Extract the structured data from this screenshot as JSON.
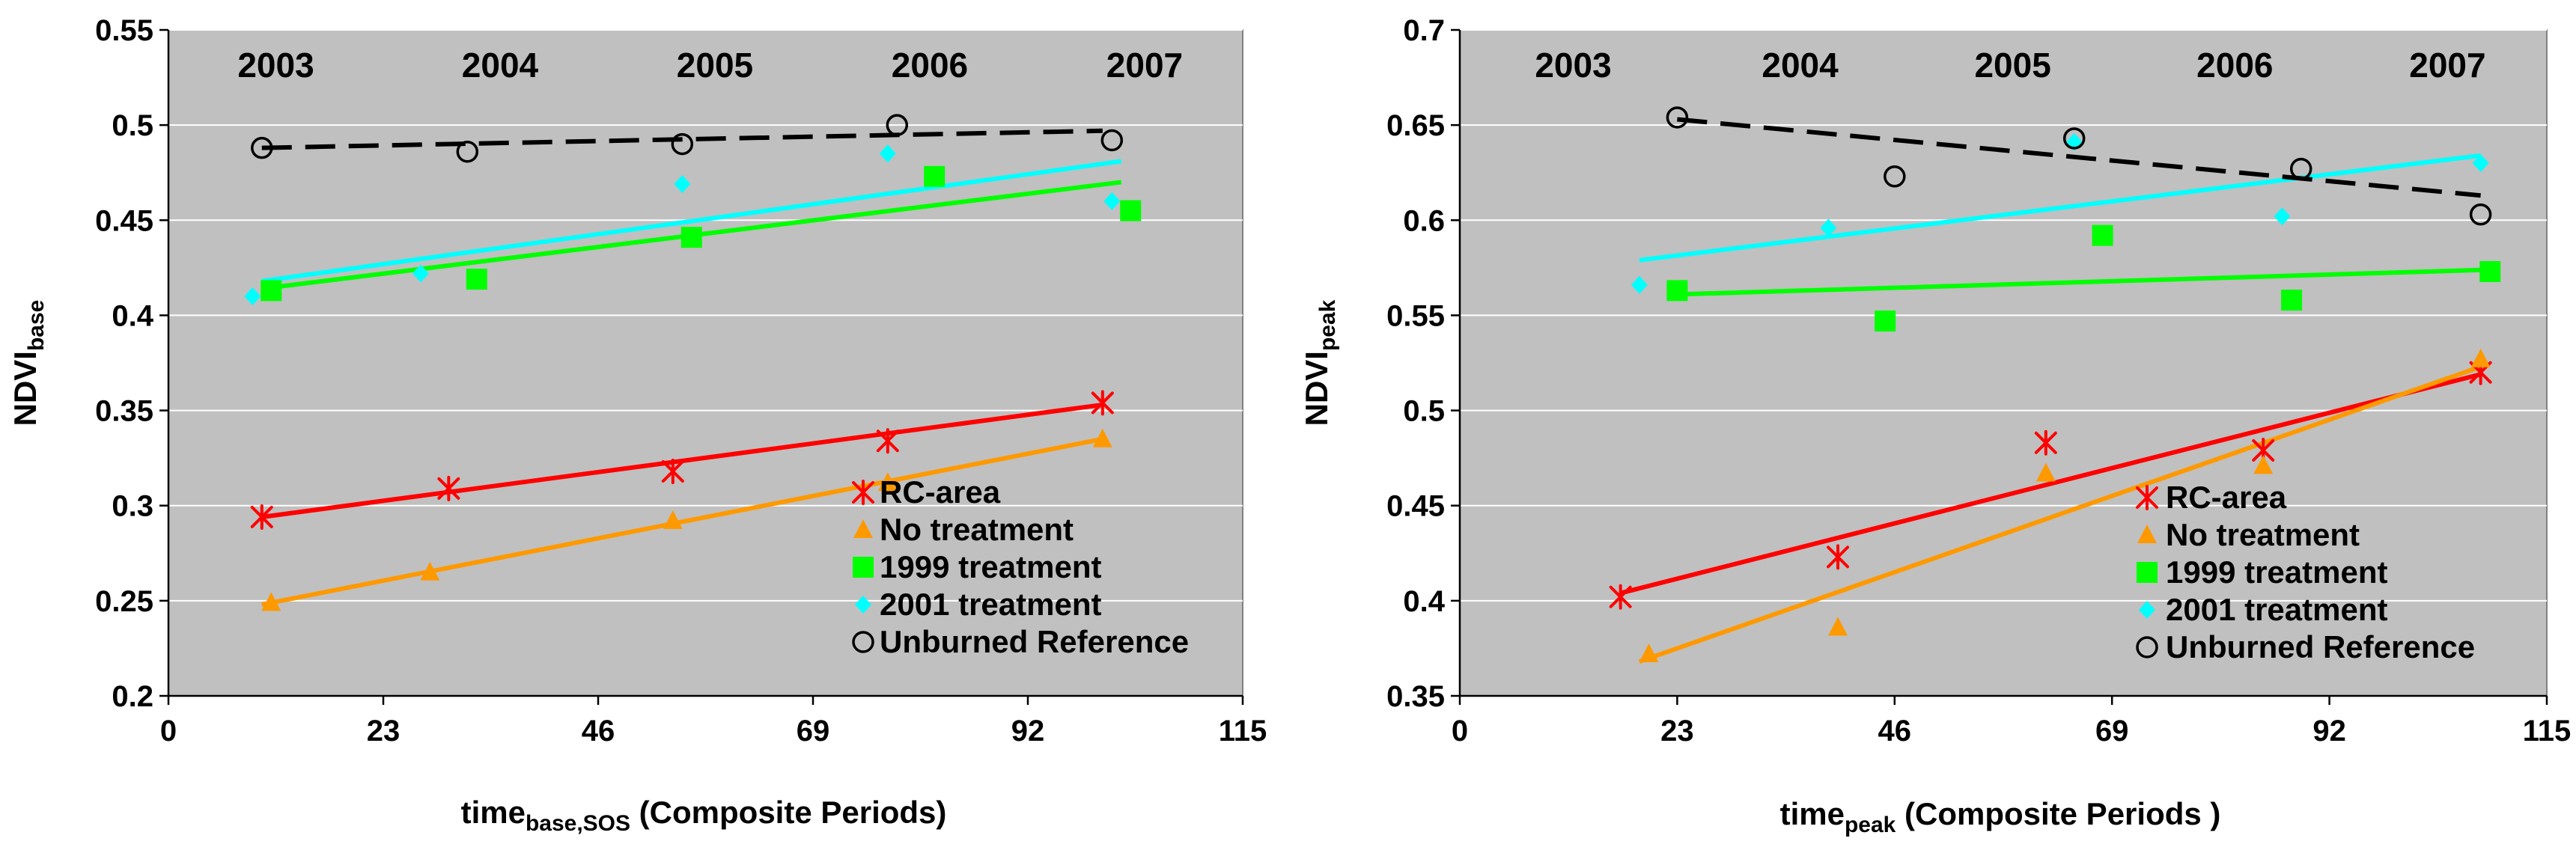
{
  "chart_data": [
    {
      "type": "scatter",
      "id": "base",
      "title": "",
      "xlabel": {
        "main": "time",
        "sub": "base,SOS",
        "rest": " (Composite Periods)"
      },
      "ylabel": {
        "main": "NDVI",
        "sub": "base"
      },
      "xlim": [
        0,
        115
      ],
      "ylim": [
        0.2,
        0.55
      ],
      "xticks": [
        0,
        23,
        46,
        69,
        92,
        115
      ],
      "xtick_labels": [
        "0",
        "23",
        "46",
        "69",
        "92",
        "115"
      ],
      "yticks": [
        0.2,
        0.25,
        0.3,
        0.35,
        0.4,
        0.45,
        0.5,
        0.55
      ],
      "ytick_labels": [
        "0.2",
        "0.25",
        "0.3",
        "0.35",
        "0.4",
        "0.45",
        "0.5",
        "0.55"
      ],
      "grid": "horizontal",
      "legend_position": "bottom-right",
      "year_labels": [
        {
          "text": "2003",
          "x": 11.5
        },
        {
          "text": "2004",
          "x": 35.5
        },
        {
          "text": "2005",
          "x": 58.5
        },
        {
          "text": "2006",
          "x": 81.5
        },
        {
          "text": "2007",
          "x": 104.5
        }
      ],
      "series": [
        {
          "name": "RC-area",
          "marker": "asterisk",
          "color": "#ff0000",
          "x": [
            10,
            30,
            54,
            77,
            100
          ],
          "y": [
            0.294,
            0.309,
            0.318,
            0.334,
            0.354
          ],
          "trend": {
            "x": [
              10,
              100
            ],
            "y": [
              0.294,
              0.353
            ],
            "dash": "solid"
          }
        },
        {
          "name": "No treatment",
          "marker": "triangle",
          "color": "#ff9900",
          "x": [
            11,
            28,
            54,
            77,
            100
          ],
          "y": [
            0.249,
            0.265,
            0.292,
            0.312,
            0.335
          ],
          "trend": {
            "x": [
              10,
              100
            ],
            "y": [
              0.248,
              0.335
            ],
            "dash": "solid"
          }
        },
        {
          "name": "1999 treatment",
          "marker": "square",
          "color": "#00ff00",
          "x": [
            11,
            33,
            56,
            82,
            103
          ],
          "y": [
            0.413,
            0.419,
            0.441,
            0.473,
            0.455
          ],
          "trend": {
            "x": [
              10,
              102
            ],
            "y": [
              0.414,
              0.47
            ],
            "dash": "solid"
          }
        },
        {
          "name": "2001 treatment",
          "marker": "diamond",
          "color": "#00ffff",
          "x": [
            9,
            27,
            55,
            77,
            101
          ],
          "y": [
            0.41,
            0.422,
            0.469,
            0.485,
            0.46
          ],
          "trend": {
            "x": [
              10,
              102
            ],
            "y": [
              0.418,
              0.481
            ],
            "dash": "solid"
          }
        },
        {
          "name": "Unburned Reference",
          "marker": "circle",
          "color": "#000000",
          "x": [
            10,
            32,
            55,
            78,
            101
          ],
          "y": [
            0.488,
            0.486,
            0.49,
            0.5,
            0.492
          ],
          "trend": {
            "x": [
              10,
              100
            ],
            "y": [
              0.488,
              0.497
            ],
            "dash": "dashed"
          }
        }
      ]
    },
    {
      "type": "scatter",
      "id": "peak",
      "title": "",
      "xlabel": {
        "main": "time",
        "sub": "peak",
        "rest": " (Composite Periods )"
      },
      "ylabel": {
        "main": "NDVI",
        "sub": "peak"
      },
      "xlim": [
        0,
        115
      ],
      "ylim": [
        0.35,
        0.7
      ],
      "xticks": [
        0,
        23,
        46,
        69,
        92,
        115
      ],
      "xtick_labels": [
        "0",
        "23",
        "46",
        "69",
        "92",
        "115"
      ],
      "yticks": [
        0.35,
        0.4,
        0.45,
        0.5,
        0.55,
        0.6,
        0.65,
        0.7
      ],
      "ytick_labels": [
        "0.35",
        "0.4",
        "0.45",
        "0.5",
        "0.55",
        "0.6",
        "0.65",
        "0.7"
      ],
      "grid": "horizontal",
      "legend_position": "bottom-right",
      "year_labels": [
        {
          "text": "2003",
          "x": 12
        },
        {
          "text": "2004",
          "x": 36
        },
        {
          "text": "2005",
          "x": 58.5
        },
        {
          "text": "2006",
          "x": 82
        },
        {
          "text": "2007",
          "x": 104.5
        }
      ],
      "series": [
        {
          "name": "RC-area",
          "marker": "asterisk",
          "color": "#ff0000",
          "x": [
            17,
            40,
            62,
            85,
            108
          ],
          "y": [
            0.402,
            0.423,
            0.483,
            0.479,
            0.52
          ],
          "trend": {
            "x": [
              17,
              108
            ],
            "y": [
              0.404,
              0.519
            ],
            "dash": "solid"
          }
        },
        {
          "name": "No treatment",
          "marker": "triangle",
          "color": "#ff9900",
          "x": [
            20,
            40,
            62,
            85,
            108
          ],
          "y": [
            0.372,
            0.386,
            0.467,
            0.471,
            0.527
          ],
          "trend": {
            "x": [
              19,
              108
            ],
            "y": [
              0.368,
              0.523
            ],
            "dash": "solid"
          }
        },
        {
          "name": "1999 treatment",
          "marker": "square",
          "color": "#00ff00",
          "x": [
            23,
            45,
            68,
            88,
            109
          ],
          "y": [
            0.563,
            0.547,
            0.592,
            0.558,
            0.573
          ],
          "trend": {
            "x": [
              23,
              109
            ],
            "y": [
              0.561,
              0.574
            ],
            "dash": "solid"
          }
        },
        {
          "name": "2001 treatment",
          "marker": "diamond",
          "color": "#00ffff",
          "x": [
            19,
            39,
            65,
            87,
            108
          ],
          "y": [
            0.566,
            0.596,
            0.641,
            0.602,
            0.63
          ],
          "trend": {
            "x": [
              19,
              108
            ],
            "y": [
              0.579,
              0.634
            ],
            "dash": "solid"
          }
        },
        {
          "name": "Unburned Reference",
          "marker": "circle",
          "color": "#000000",
          "x": [
            23,
            46,
            65,
            89,
            108
          ],
          "y": [
            0.654,
            0.623,
            0.643,
            0.627,
            0.603
          ],
          "trend": {
            "x": [
              23,
              108
            ],
            "y": [
              0.653,
              0.613
            ],
            "dash": "dashed"
          }
        }
      ]
    }
  ]
}
